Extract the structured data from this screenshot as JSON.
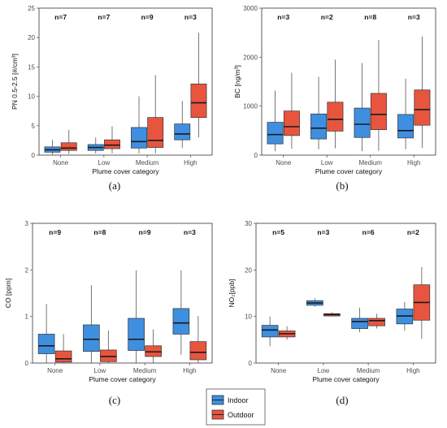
{
  "colors": {
    "indoor": "#3f8fe0",
    "outdoor": "#e8553f",
    "axis": "#4d4d4d",
    "grid": "#ffffff"
  },
  "legend": {
    "items": [
      "Indoor",
      "Outdoor"
    ]
  },
  "chart_data": [
    {
      "panel": "(a)",
      "type": "boxplot",
      "categories": [
        "None",
        "Low",
        "Medium",
        "High"
      ],
      "xlabel": "Plume cover category",
      "ylabel": "PN 0.5-2.5 [#/cm³]",
      "ylim": [
        0,
        25
      ],
      "yticks": [
        0,
        5,
        10,
        15,
        20,
        25
      ],
      "n_labels": [
        "n=7",
        "n=7",
        "n=9",
        "n=3"
      ],
      "series": [
        {
          "name": "Indoor",
          "boxes": [
            {
              "min": 0.1,
              "q1": 0.5,
              "median": 0.9,
              "q3": 1.4,
              "max": 2.6
            },
            {
              "min": 0.3,
              "q1": 0.8,
              "median": 1.3,
              "q3": 1.8,
              "max": 3.0
            },
            {
              "min": 0.3,
              "q1": 1.2,
              "median": 2.3,
              "q3": 4.7,
              "max": 10.0
            },
            {
              "min": 1.2,
              "q1": 2.6,
              "median": 3.6,
              "q3": 5.3,
              "max": 9.2
            }
          ]
        },
        {
          "name": "Outdoor",
          "boxes": [
            {
              "min": 0.2,
              "q1": 0.8,
              "median": 1.2,
              "q3": 2.1,
              "max": 4.3
            },
            {
              "min": 0.3,
              "q1": 1.1,
              "median": 1.7,
              "q3": 2.6,
              "max": 4.9
            },
            {
              "min": 0.3,
              "q1": 1.3,
              "median": 2.5,
              "q3": 6.4,
              "max": 13.6
            },
            {
              "min": 3.0,
              "q1": 6.4,
              "median": 8.9,
              "q3": 12.1,
              "max": 20.8
            }
          ]
        }
      ]
    },
    {
      "panel": "(b)",
      "type": "boxplot",
      "categories": [
        "None",
        "Low",
        "Medium",
        "High"
      ],
      "xlabel": "Plume cover category",
      "ylabel": "BC [ng/m³]",
      "ylim": [
        0,
        3000
      ],
      "yticks": [
        0,
        1000,
        2000,
        3000
      ],
      "n_labels": [
        "n=3",
        "n=2",
        "n=8",
        "n=3"
      ],
      "series": [
        {
          "name": "Indoor",
          "boxes": [
            {
              "min": 80,
              "q1": 230,
              "median": 420,
              "q3": 670,
              "max": 1320
            },
            {
              "min": 120,
              "q1": 330,
              "median": 550,
              "q3": 840,
              "max": 1600
            },
            {
              "min": 80,
              "q1": 360,
              "median": 630,
              "q3": 960,
              "max": 1880
            },
            {
              "min": 120,
              "q1": 350,
              "median": 500,
              "q3": 830,
              "max": 1560
            }
          ]
        },
        {
          "name": "Outdoor",
          "boxes": [
            {
              "min": 130,
              "q1": 400,
              "median": 580,
              "q3": 900,
              "max": 1680
            },
            {
              "min": 140,
              "q1": 490,
              "median": 730,
              "q3": 1080,
              "max": 1950
            },
            {
              "min": 90,
              "q1": 520,
              "median": 830,
              "q3": 1260,
              "max": 2350
            },
            {
              "min": 150,
              "q1": 610,
              "median": 930,
              "q3": 1330,
              "max": 2420
            }
          ]
        }
      ]
    },
    {
      "panel": "(c)",
      "type": "boxplot",
      "categories": [
        "None",
        "Low",
        "Medium",
        "High"
      ],
      "xlabel": "Plume cover category",
      "ylabel": "CO [ppm]",
      "ylim": [
        0,
        3
      ],
      "yticks": [
        0,
        1,
        2,
        3
      ],
      "n_labels": [
        "n=9",
        "n=8",
        "n=9",
        "n=3"
      ],
      "series": [
        {
          "name": "Indoor",
          "boxes": [
            {
              "min": 0.0,
              "q1": 0.2,
              "median": 0.37,
              "q3": 0.62,
              "max": 1.27
            },
            {
              "min": 0.0,
              "q1": 0.25,
              "median": 0.51,
              "q3": 0.82,
              "max": 1.67
            },
            {
              "min": 0.0,
              "q1": 0.27,
              "median": 0.51,
              "q3": 0.96,
              "max": 1.99
            },
            {
              "min": 0.18,
              "q1": 0.62,
              "median": 0.86,
              "q3": 1.17,
              "max": 1.99
            }
          ]
        },
        {
          "name": "Outdoor",
          "boxes": [
            {
              "min": 0.0,
              "q1": 0.02,
              "median": 0.09,
              "q3": 0.26,
              "max": 0.62
            },
            {
              "min": 0.0,
              "q1": 0.03,
              "median": 0.14,
              "q3": 0.28,
              "max": 0.7
            },
            {
              "min": 0.0,
              "q1": 0.14,
              "median": 0.24,
              "q3": 0.37,
              "max": 0.72
            },
            {
              "min": 0.0,
              "q1": 0.07,
              "median": 0.23,
              "q3": 0.46,
              "max": 1.01
            }
          ]
        }
      ]
    },
    {
      "panel": "(d)",
      "type": "boxplot",
      "categories": [
        "None",
        "Low",
        "Medium",
        "High"
      ],
      "xlabel": "Plume cover category",
      "ylabel": "NO₂[ppb]",
      "ylim": [
        0,
        30
      ],
      "yticks": [
        0,
        10,
        20,
        30
      ],
      "n_labels": [
        "n=5",
        "n=3",
        "n=6",
        "n=2"
      ],
      "series": [
        {
          "name": "Indoor",
          "boxes": [
            {
              "min": 3.6,
              "q1": 5.6,
              "median": 7.1,
              "q3": 8.1,
              "max": 10.0
            },
            {
              "min": 12.1,
              "q1": 12.4,
              "median": 12.9,
              "q3": 13.4,
              "max": 13.9
            },
            {
              "min": 6.6,
              "q1": 7.4,
              "median": 8.9,
              "q3": 9.6,
              "max": 11.9
            },
            {
              "min": 7.0,
              "q1": 8.4,
              "median": 10.1,
              "q3": 11.6,
              "max": 13.1
            }
          ]
        },
        {
          "name": "Outdoor",
          "boxes": [
            {
              "min": 5.0,
              "q1": 5.6,
              "median": 6.3,
              "q3": 6.9,
              "max": 7.9
            },
            {
              "min": 10.0,
              "q1": 10.1,
              "median": 10.4,
              "q3": 10.6,
              "max": 10.9
            },
            {
              "min": 7.4,
              "q1": 8.0,
              "median": 9.1,
              "q3": 9.6,
              "max": 10.6
            },
            {
              "min": 5.2,
              "q1": 9.2,
              "median": 13.0,
              "q3": 16.8,
              "max": 20.6
            }
          ]
        }
      ]
    }
  ]
}
